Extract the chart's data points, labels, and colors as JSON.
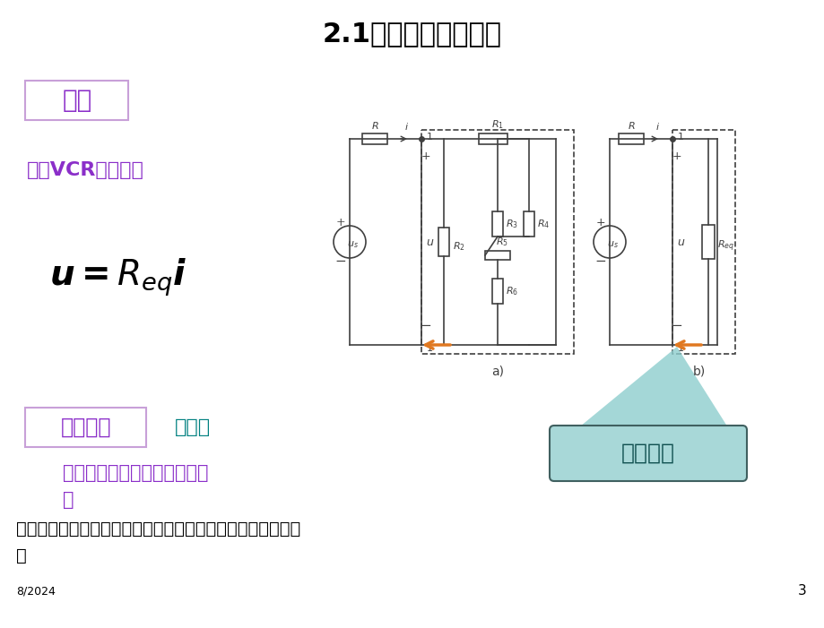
{
  "title": "2.1电阻的串联和并联",
  "title_fontsize": 22,
  "title_color": "#000000",
  "bg_color": "#ffffff",
  "text_dengxiao": "等效",
  "text_duankou_vcr": "端口VCR完全相同",
  "text_equation": "u = R_{eq}i",
  "text_erduan": "二端网络",
  "text_yiduankou": "一端口",
  "text_dengxiao_dianzu": "等效电阻",
  "text_line1": "有两个端子与外电路相连的网",
  "text_line2": "络",
  "text_line3": "任何时刻，从一个端子流入的电流等于从另一个端子流出的电",
  "text_line4": "流",
  "text_date": "8/2024",
  "text_page": "3",
  "purple_color": "#8B2FC9",
  "teal_color": "#008080",
  "orange_arrow_color": "#E07820",
  "circuit_line_color": "#404040",
  "dengxiao_box_color": "#C8A0D8",
  "dengxiao_dianzu_box_color": "#A0C8C8",
  "erduan_box_color": "#C8A0D8"
}
